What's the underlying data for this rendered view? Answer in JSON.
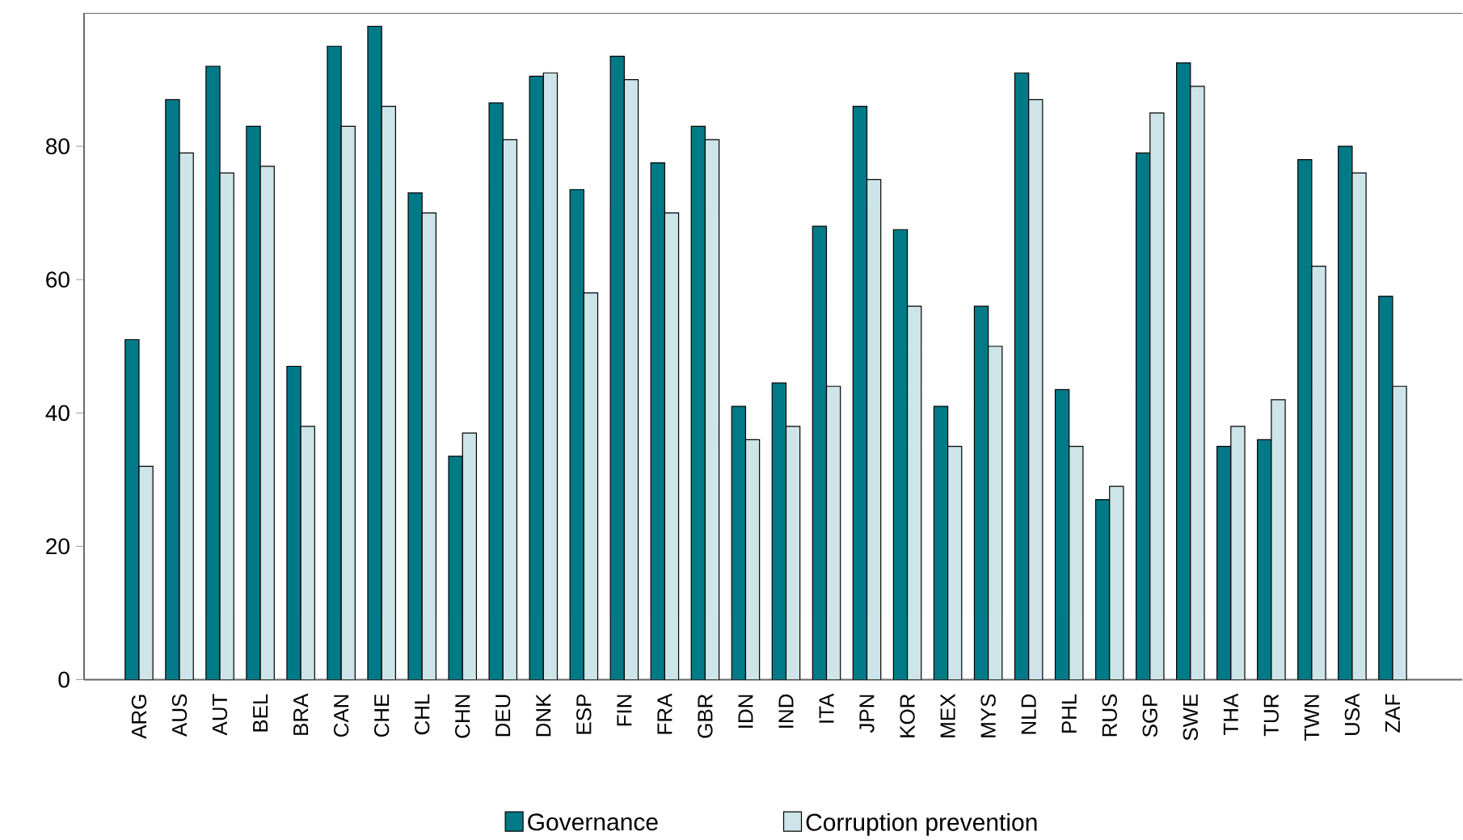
{
  "chart_data": {
    "type": "bar",
    "categories": [
      "ARG",
      "AUS",
      "AUT",
      "BEL",
      "BRA",
      "CAN",
      "CHE",
      "CHL",
      "CHN",
      "DEU",
      "DNK",
      "ESP",
      "FIN",
      "FRA",
      "GBR",
      "IDN",
      "IND",
      "ITA",
      "JPN",
      "KOR",
      "MEX",
      "MYS",
      "NLD",
      "PHL",
      "RUS",
      "SGP",
      "SWE",
      "THA",
      "TUR",
      "TWN",
      "USA",
      "ZAF"
    ],
    "series": [
      {
        "name": "Governance",
        "color": "#007a87",
        "values": [
          51,
          87,
          92,
          83,
          47,
          95,
          98,
          73,
          33.5,
          86.5,
          90.5,
          73.5,
          93.5,
          77.5,
          83,
          41,
          44.5,
          68,
          86,
          67.5,
          41,
          56,
          91,
          43.5,
          27,
          79,
          92.5,
          35,
          36,
          78,
          80,
          57.5
        ]
      },
      {
        "name": "Corruption prevention",
        "color": "#cde4e8",
        "values": [
          32,
          79,
          76,
          77,
          38,
          83,
          86,
          70,
          37,
          81,
          91,
          58,
          90,
          70,
          81,
          36,
          38,
          44,
          75,
          56,
          35,
          50,
          87,
          35,
          29,
          85,
          89,
          38,
          42,
          62,
          76,
          44
        ]
      }
    ],
    "ylim": [
      0,
      100
    ],
    "yticks": [
      0,
      20,
      40,
      60,
      80
    ],
    "grid": false,
    "legend": "bottom"
  }
}
